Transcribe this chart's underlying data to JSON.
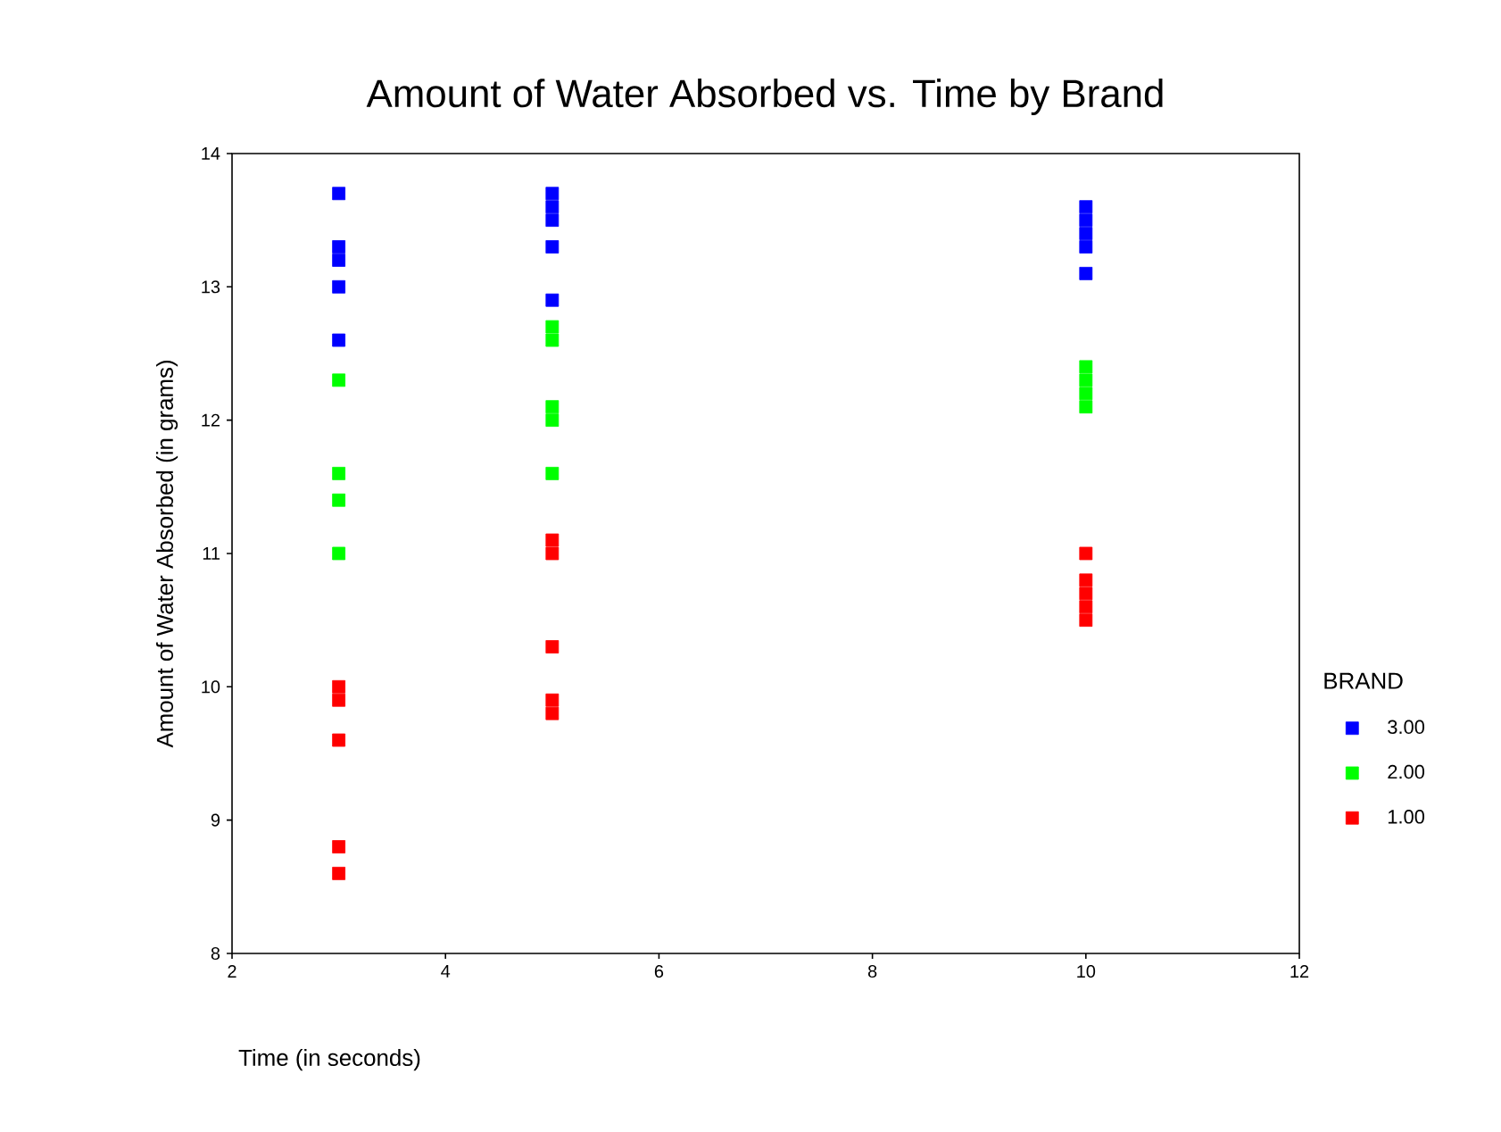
{
  "chart_data": {
    "type": "scatter",
    "title": "Amount of Water Absorbed vs. Time by Brand",
    "xlabel": "Time (in seconds)",
    "ylabel": "Amount of Water Absorbed (in grams)",
    "legend_title": "BRAND",
    "xlim": [
      2,
      12
    ],
    "xticks": [
      2,
      4,
      6,
      8,
      10,
      12
    ],
    "ylim": [
      8,
      14
    ],
    "yticks": [
      8,
      9,
      10,
      11,
      12,
      13,
      14
    ],
    "grid": false,
    "legend": "right",
    "marker": "square",
    "series": [
      {
        "name": "3.00",
        "color": "#0000ff",
        "x": [
          3,
          3,
          3,
          3,
          3,
          5,
          5,
          5,
          5,
          5,
          10,
          10,
          10,
          10,
          10
        ],
        "values": [
          13.7,
          13.3,
          13.2,
          13.0,
          12.6,
          13.7,
          13.6,
          13.5,
          13.3,
          12.9,
          13.6,
          13.5,
          13.4,
          13.3,
          13.1
        ]
      },
      {
        "name": "2.00",
        "color": "#00ff00",
        "x": [
          3,
          3,
          3,
          3,
          5,
          5,
          5,
          5,
          5,
          10,
          10,
          10,
          10
        ],
        "values": [
          12.3,
          11.6,
          11.4,
          11.0,
          12.7,
          12.6,
          12.1,
          12.0,
          11.6,
          12.4,
          12.3,
          12.2,
          12.1
        ]
      },
      {
        "name": "1.00",
        "color": "#ff0000",
        "x": [
          3,
          3,
          3,
          3,
          3,
          5,
          5,
          5,
          5,
          5,
          10,
          10,
          10,
          10,
          10
        ],
        "values": [
          10.0,
          9.9,
          9.6,
          8.8,
          8.6,
          11.1,
          11.0,
          10.3,
          9.9,
          9.8,
          11.0,
          10.8,
          10.7,
          10.6,
          10.5
        ]
      }
    ]
  }
}
